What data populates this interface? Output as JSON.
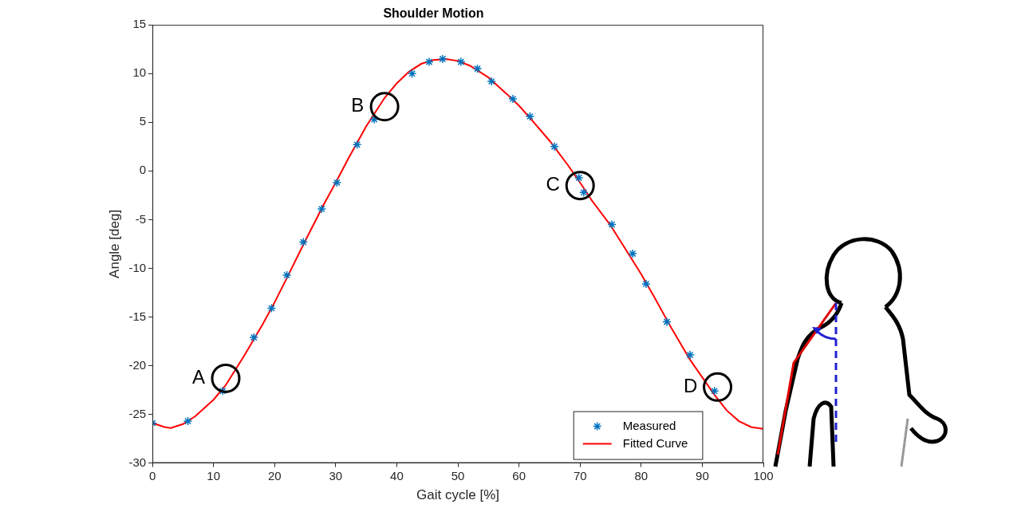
{
  "chart_data": {
    "type": "line",
    "title": "Shoulder Motion",
    "x_label": "Gait cycle [%]",
    "y_label": "Angle [deg]",
    "series": [
      {
        "name": "Measured",
        "type": "scatter",
        "color": "#0072bd",
        "marker": "asterisk",
        "x": [
          0,
          5.8,
          11.5,
          16.6,
          19.5,
          22,
          24.7,
          27.7,
          30.2,
          33.5,
          36.3,
          42.5,
          45.3,
          47.5,
          50.5,
          53.2,
          55.5,
          59,
          61.8,
          65.8,
          69.8,
          70.6,
          75.2,
          78.6,
          80.8,
          84.2,
          88,
          92
        ],
        "values": [
          -25.9,
          -25.7,
          -22.6,
          -17.1,
          -14.1,
          -10.7,
          -7.3,
          -3.9,
          -1.2,
          2.7,
          5.3,
          10.0,
          11.2,
          11.5,
          11.2,
          10.5,
          9.2,
          7.4,
          5.6,
          2.5,
          -0.7,
          -2.2,
          -5.5,
          -8.5,
          -11.6,
          -15.5,
          -18.9,
          -22.6
        ]
      },
      {
        "name": "Fitted Curve",
        "type": "line",
        "color": "#ff0000",
        "line_style": "solid",
        "x": [
          0,
          2,
          3,
          5,
          7,
          10,
          12,
          15,
          18,
          20,
          22,
          25,
          28,
          30,
          32,
          35,
          38,
          40,
          42,
          44,
          46,
          48,
          50,
          52,
          55,
          58,
          60,
          62,
          65,
          68,
          70,
          72,
          75,
          78,
          80,
          82,
          85,
          88,
          90,
          92,
          94,
          96,
          98,
          100
        ],
        "values": [
          -25.9,
          -26.3,
          -26.4,
          -26.0,
          -25.2,
          -23.5,
          -22.0,
          -19.0,
          -15.8,
          -13.5,
          -11.0,
          -7.2,
          -3.5,
          -1.2,
          1.2,
          4.6,
          7.5,
          9.0,
          10.2,
          11.0,
          11.4,
          11.5,
          11.3,
          10.8,
          9.6,
          7.9,
          6.7,
          5.3,
          3.1,
          0.6,
          -1.2,
          -3.1,
          -5.6,
          -8.6,
          -10.6,
          -12.8,
          -16.2,
          -19.4,
          -21.2,
          -23.0,
          -24.6,
          -25.7,
          -26.3,
          -26.5
        ]
      }
    ],
    "annotations": [
      {
        "label": "A",
        "x": 12,
        "y": -21.3
      },
      {
        "label": "B",
        "x": 38,
        "y": 6.6
      },
      {
        "label": "C",
        "x": 70,
        "y": -1.5
      },
      {
        "label": "D",
        "x": 92.5,
        "y": -22.2
      }
    ],
    "xlim": [
      0,
      100
    ],
    "xticks": [
      0,
      10,
      20,
      30,
      40,
      50,
      60,
      70,
      80,
      90,
      100
    ],
    "ylim": [
      -30,
      15
    ],
    "yticks": [
      -30,
      -25,
      -20,
      -15,
      -10,
      -5,
      0,
      5,
      10,
      15
    ],
    "grid": false,
    "legend": "lower right"
  }
}
